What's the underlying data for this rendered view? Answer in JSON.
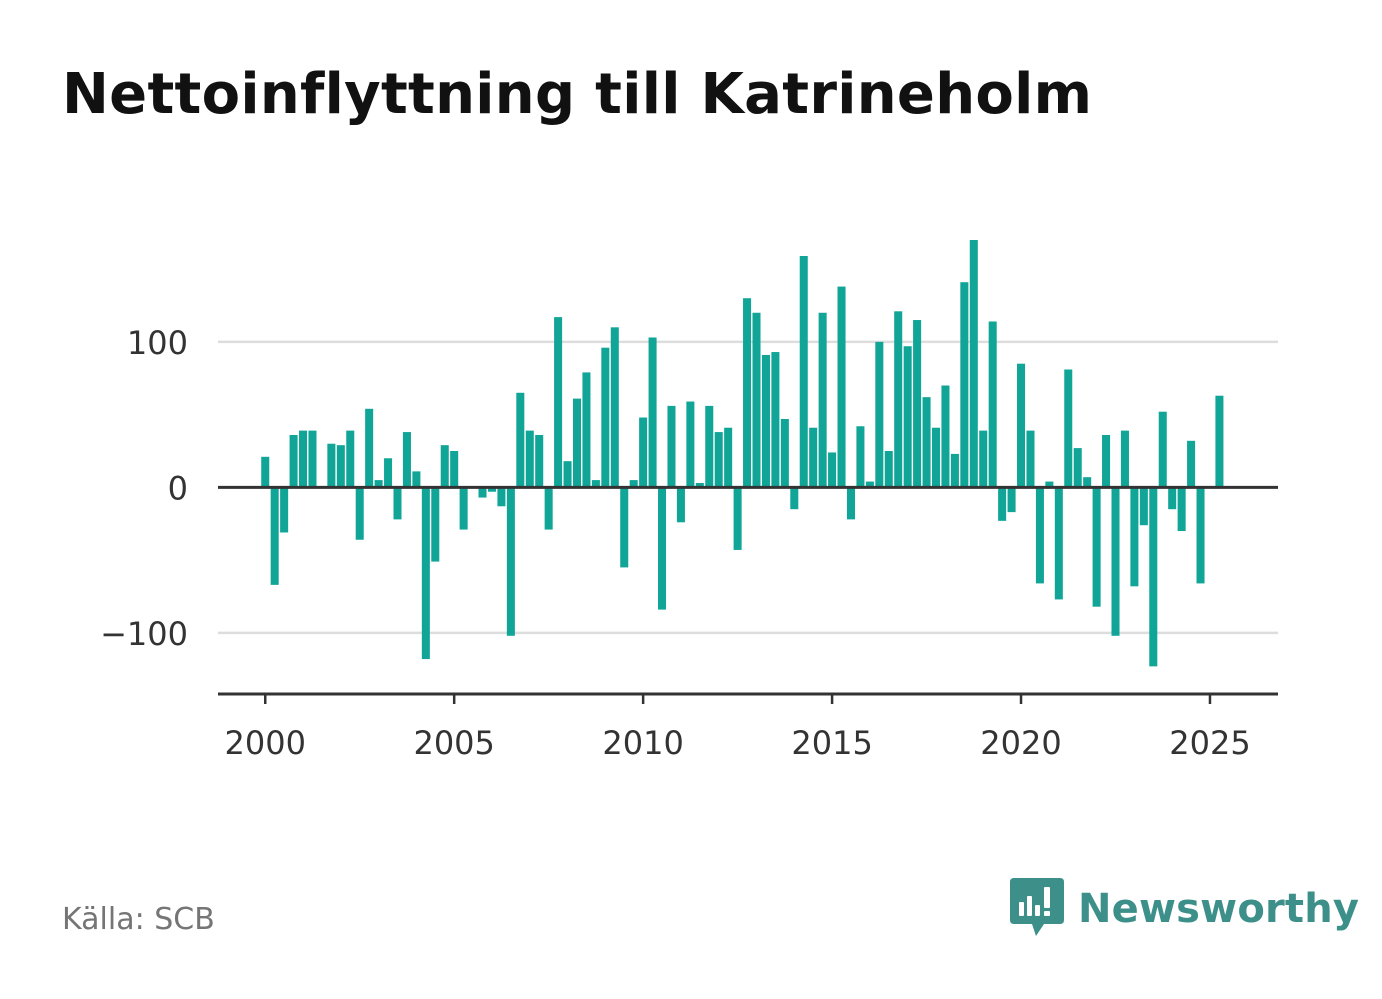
{
  "title": "Nettoinflyttning till Katrineholm",
  "source": "Källa: SCB",
  "brand": {
    "name": "Newsworthy",
    "icon": "newsworthy-logo-icon",
    "color": "#3d8f8a"
  },
  "colors": {
    "bar": "#11a598",
    "grid": "#dddddd",
    "axis": "#333333",
    "tick_text": "#333333"
  },
  "chart_data": {
    "type": "bar",
    "title": "Nettoinflyttning till Katrineholm",
    "xlabel": "",
    "ylabel": "",
    "ylim": [
      -142,
      170
    ],
    "xlim": [
      1998.75,
      2026.8
    ],
    "yticks": [
      -100,
      0,
      100
    ],
    "ytick_labels": [
      "−100",
      "0",
      "100"
    ],
    "xticks": [
      2000,
      2005,
      2010,
      2015,
      2020,
      2025
    ],
    "xtick_labels": [
      "2000",
      "2005",
      "2010",
      "2015",
      "2020",
      "2025"
    ],
    "grid": true,
    "series": [
      {
        "values": [
          {
            "x": "2000-Q1",
            "y": 21
          },
          {
            "x": "2000-Q2",
            "y": -67
          },
          {
            "x": "2000-Q3",
            "y": -31
          },
          {
            "x": "2000-Q4",
            "y": 36
          },
          {
            "x": "2001-Q1",
            "y": 39
          },
          {
            "x": "2001-Q2",
            "y": 39
          },
          {
            "x": "2001-Q3",
            "y": 0
          },
          {
            "x": "2001-Q4",
            "y": 30
          },
          {
            "x": "2002-Q1",
            "y": 29
          },
          {
            "x": "2002-Q2",
            "y": 39
          },
          {
            "x": "2002-Q3",
            "y": -36
          },
          {
            "x": "2002-Q4",
            "y": 54
          },
          {
            "x": "2003-Q1",
            "y": 5
          },
          {
            "x": "2003-Q2",
            "y": 20
          },
          {
            "x": "2003-Q3",
            "y": -22
          },
          {
            "x": "2003-Q4",
            "y": 38
          },
          {
            "x": "2004-Q1",
            "y": 11
          },
          {
            "x": "2004-Q2",
            "y": -118
          },
          {
            "x": "2004-Q3",
            "y": -51
          },
          {
            "x": "2004-Q4",
            "y": 29
          },
          {
            "x": "2005-Q1",
            "y": 25
          },
          {
            "x": "2005-Q2",
            "y": -29
          },
          {
            "x": "2005-Q3",
            "y": 0
          },
          {
            "x": "2005-Q4",
            "y": -7
          },
          {
            "x": "2006-Q1",
            "y": -3
          },
          {
            "x": "2006-Q2",
            "y": -13
          },
          {
            "x": "2006-Q3",
            "y": -102
          },
          {
            "x": "2006-Q4",
            "y": 65
          },
          {
            "x": "2007-Q1",
            "y": 39
          },
          {
            "x": "2007-Q2",
            "y": 36
          },
          {
            "x": "2007-Q3",
            "y": -29
          },
          {
            "x": "2007-Q4",
            "y": 117
          },
          {
            "x": "2008-Q1",
            "y": 18
          },
          {
            "x": "2008-Q2",
            "y": 61
          },
          {
            "x": "2008-Q3",
            "y": 79
          },
          {
            "x": "2008-Q4",
            "y": 5
          },
          {
            "x": "2009-Q1",
            "y": 96
          },
          {
            "x": "2009-Q2",
            "y": 110
          },
          {
            "x": "2009-Q3",
            "y": -55
          },
          {
            "x": "2009-Q4",
            "y": 5
          },
          {
            "x": "2010-Q1",
            "y": 48
          },
          {
            "x": "2010-Q2",
            "y": 103
          },
          {
            "x": "2010-Q3",
            "y": -84
          },
          {
            "x": "2010-Q4",
            "y": 56
          },
          {
            "x": "2011-Q1",
            "y": -24
          },
          {
            "x": "2011-Q2",
            "y": 59
          },
          {
            "x": "2011-Q3",
            "y": 3
          },
          {
            "x": "2011-Q4",
            "y": 56
          },
          {
            "x": "2012-Q1",
            "y": 38
          },
          {
            "x": "2012-Q2",
            "y": 41
          },
          {
            "x": "2012-Q3",
            "y": -43
          },
          {
            "x": "2012-Q4",
            "y": 130
          },
          {
            "x": "2013-Q1",
            "y": 120
          },
          {
            "x": "2013-Q2",
            "y": 91
          },
          {
            "x": "2013-Q3",
            "y": 93
          },
          {
            "x": "2013-Q4",
            "y": 47
          },
          {
            "x": "2014-Q1",
            "y": -15
          },
          {
            "x": "2014-Q2",
            "y": 159
          },
          {
            "x": "2014-Q3",
            "y": 41
          },
          {
            "x": "2014-Q4",
            "y": 120
          },
          {
            "x": "2015-Q1",
            "y": 24
          },
          {
            "x": "2015-Q2",
            "y": 138
          },
          {
            "x": "2015-Q3",
            "y": -22
          },
          {
            "x": "2015-Q4",
            "y": 42
          },
          {
            "x": "2016-Q1",
            "y": 4
          },
          {
            "x": "2016-Q2",
            "y": 100
          },
          {
            "x": "2016-Q3",
            "y": 25
          },
          {
            "x": "2016-Q4",
            "y": 121
          },
          {
            "x": "2017-Q1",
            "y": 97
          },
          {
            "x": "2017-Q2",
            "y": 115
          },
          {
            "x": "2017-Q3",
            "y": 62
          },
          {
            "x": "2017-Q4",
            "y": 41
          },
          {
            "x": "2018-Q1",
            "y": 70
          },
          {
            "x": "2018-Q2",
            "y": 23
          },
          {
            "x": "2018-Q3",
            "y": 141
          },
          {
            "x": "2018-Q4",
            "y": 170
          },
          {
            "x": "2019-Q1",
            "y": 39
          },
          {
            "x": "2019-Q2",
            "y": 114
          },
          {
            "x": "2019-Q3",
            "y": -23
          },
          {
            "x": "2019-Q4",
            "y": -17
          },
          {
            "x": "2020-Q1",
            "y": 85
          },
          {
            "x": "2020-Q2",
            "y": 39
          },
          {
            "x": "2020-Q3",
            "y": -66
          },
          {
            "x": "2020-Q4",
            "y": 4
          },
          {
            "x": "2021-Q1",
            "y": -77
          },
          {
            "x": "2021-Q2",
            "y": 81
          },
          {
            "x": "2021-Q3",
            "y": 27
          },
          {
            "x": "2021-Q4",
            "y": 7
          },
          {
            "x": "2022-Q1",
            "y": -82
          },
          {
            "x": "2022-Q2",
            "y": 36
          },
          {
            "x": "2022-Q3",
            "y": -102
          },
          {
            "x": "2022-Q4",
            "y": 39
          },
          {
            "x": "2023-Q1",
            "y": -68
          },
          {
            "x": "2023-Q2",
            "y": -26
          },
          {
            "x": "2023-Q3",
            "y": -123
          },
          {
            "x": "2023-Q4",
            "y": 52
          },
          {
            "x": "2024-Q1",
            "y": -15
          },
          {
            "x": "2024-Q2",
            "y": -30
          },
          {
            "x": "2024-Q3",
            "y": 32
          },
          {
            "x": "2024-Q4",
            "y": -66
          },
          {
            "x": "2025-Q1",
            "y": 0
          },
          {
            "x": "2025-Q2",
            "y": 63
          }
        ]
      }
    ]
  }
}
